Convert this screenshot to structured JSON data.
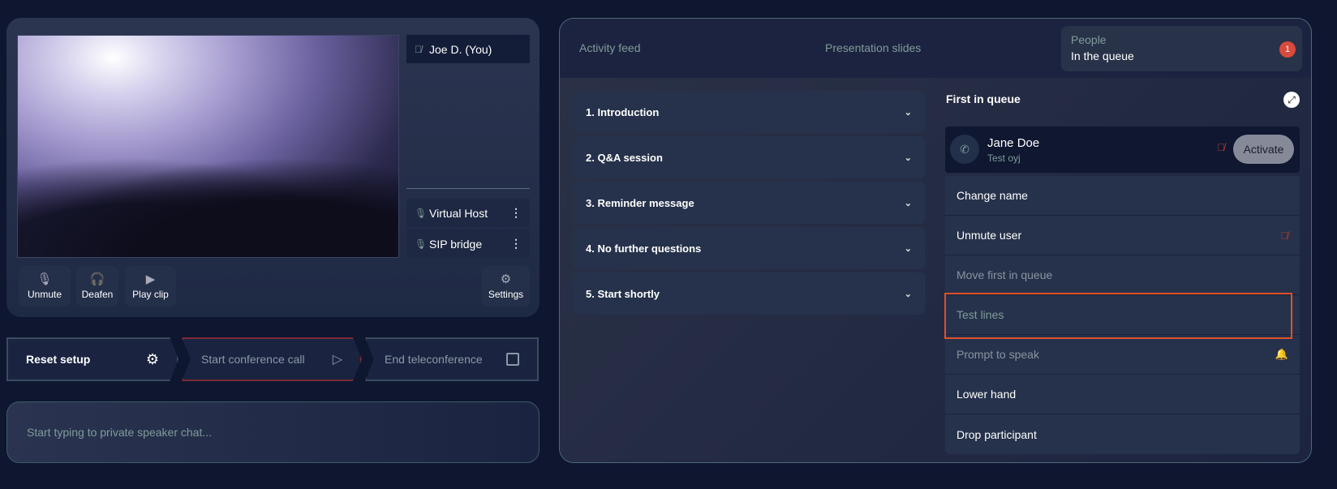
{
  "participants": {
    "self": "Joe D. (You)",
    "others": [
      {
        "name": "Virtual Host"
      },
      {
        "name": "SIP bridge"
      }
    ]
  },
  "controls": {
    "unmute": "Unmute",
    "deafen": "Deafen",
    "play_clip": "Play clip",
    "settings": "Settings"
  },
  "steps": {
    "reset": "Reset setup",
    "start": "Start conference call",
    "end": "End teleconference"
  },
  "chat": {
    "placeholder": "Start typing to private speaker chat..."
  },
  "tabs": {
    "activity": "Activity feed",
    "slides": "Presentation slides",
    "people": "People",
    "people_sub": "In the queue",
    "badge": "1"
  },
  "agenda": [
    "1. Introduction",
    "2. Q&A session",
    "3. Reminder message",
    "4. No further questions",
    "5. Start shortly"
  ],
  "queue": {
    "title": "First in queue",
    "name": "Jane Doe",
    "subtitle": "Test oyj",
    "activate": "Activate"
  },
  "menu": [
    "Change name",
    "Unmute user",
    "Move first in queue",
    "Test lines",
    "Prompt to speak",
    "Lower hand",
    "Drop participant"
  ],
  "colors": {
    "accent": "#7f9c9a",
    "danger": "#e04a3a",
    "highlight": "#e0502a"
  }
}
